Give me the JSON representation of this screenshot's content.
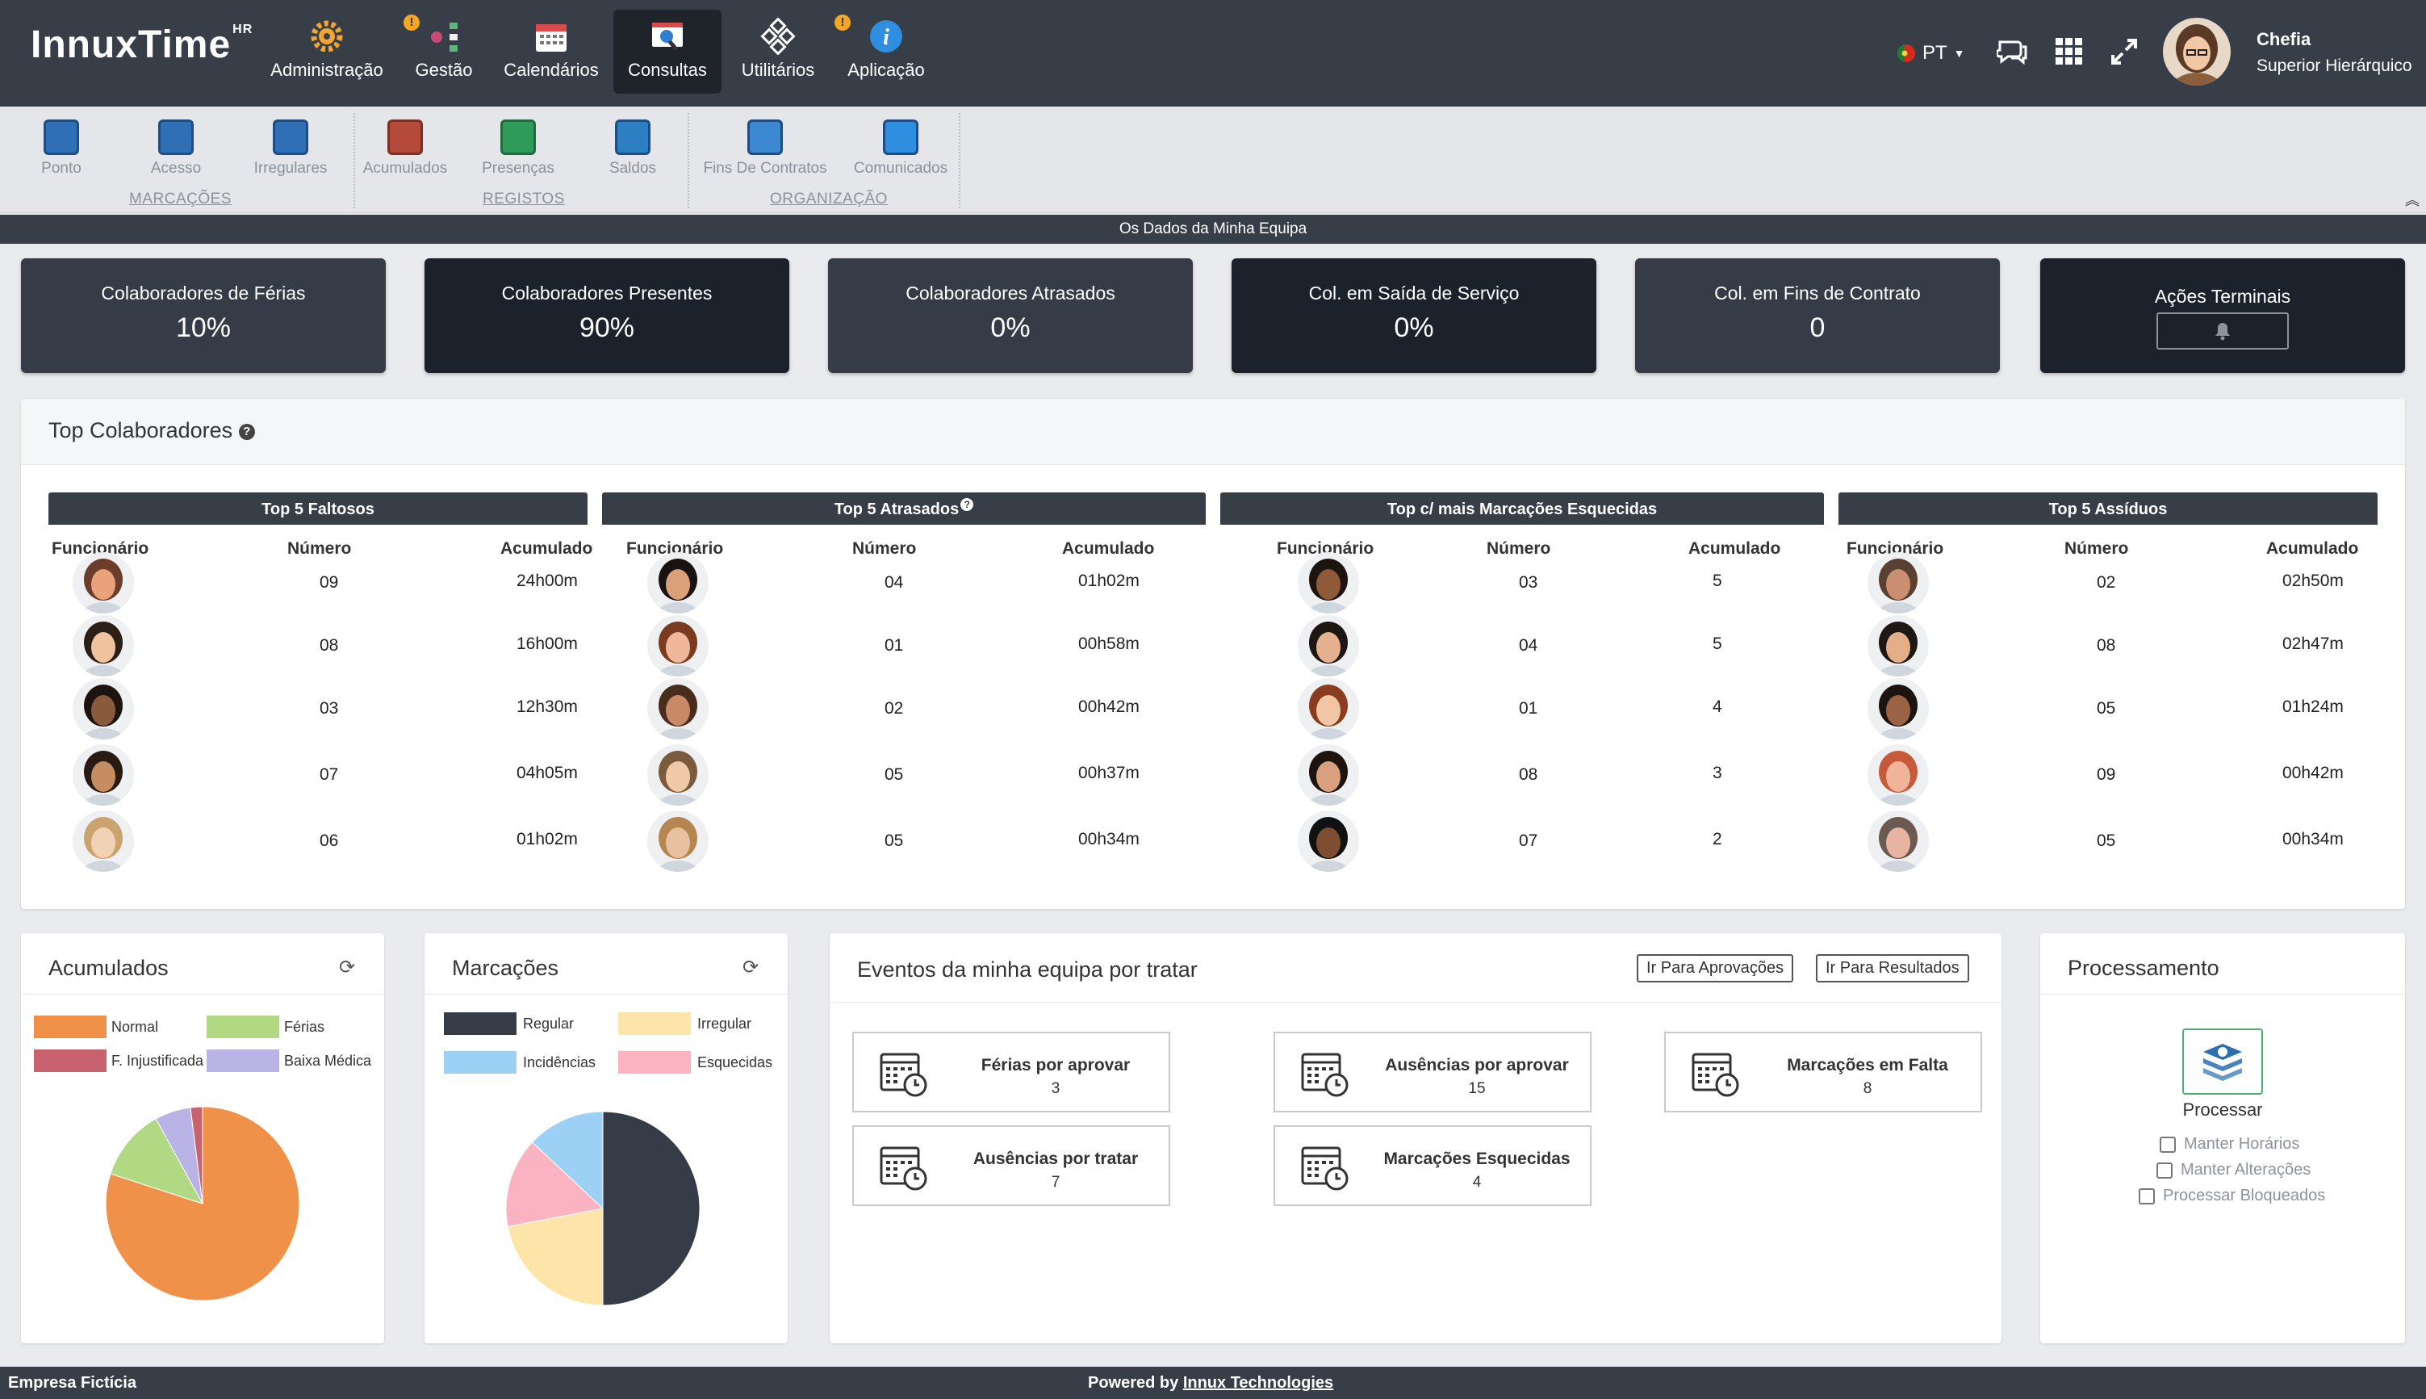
{
  "app": {
    "logo": "InnuxTime",
    "logo_sup": "HR"
  },
  "nav": {
    "items": [
      {
        "label": "Administração",
        "icon": "gear-icon"
      },
      {
        "label": "Gestão",
        "icon": "workflow-icon"
      },
      {
        "label": "Calendários",
        "icon": "calendar-icon"
      },
      {
        "label": "Consultas",
        "icon": "search-icon"
      },
      {
        "label": "Utilitários",
        "icon": "diamond-tools-icon"
      },
      {
        "label": "Aplicação",
        "icon": "info-icon"
      }
    ],
    "warn": "!",
    "lang": "PT",
    "user_name": "Chefia",
    "user_role": "Superior Hierárquico"
  },
  "subnav": {
    "items": [
      {
        "label": "Ponto"
      },
      {
        "label": "Acesso"
      },
      {
        "label": "Irregulares"
      },
      {
        "label": "Acumulados"
      },
      {
        "label": "Presenças"
      },
      {
        "label": "Saldos"
      },
      {
        "label": "Fins De Contratos"
      },
      {
        "label": "Comunicados"
      }
    ],
    "groups": [
      "MARCAÇÕES",
      "REGISTOS",
      "ORGANIZAÇÃO"
    ]
  },
  "banner": "Os Dados da Minha Equipa",
  "stats": [
    {
      "title": "Colaboradores de Férias",
      "value": "10%"
    },
    {
      "title": "Colaboradores Presentes",
      "value": "90%"
    },
    {
      "title": "Colaboradores Atrasados",
      "value": "0%"
    },
    {
      "title": "Col. em Saída de Serviço",
      "value": "0%"
    },
    {
      "title": "Col. em Fins de Contrato",
      "value": "0"
    },
    {
      "title": "Ações Terminais",
      "value": ""
    }
  ],
  "top": {
    "title": "Top Colaboradores",
    "tables": [
      {
        "title": "Top 5 Faltosos",
        "cols": [
          "Funcionário",
          "Número",
          "Acumulado"
        ],
        "rows": [
          {
            "n": "09",
            "a": "24h00m"
          },
          {
            "n": "08",
            "a": "16h00m"
          },
          {
            "n": "03",
            "a": "12h30m"
          },
          {
            "n": "07",
            "a": "04h05m"
          },
          {
            "n": "06",
            "a": "01h02m"
          }
        ]
      },
      {
        "title": "Top 5 Atrasados",
        "cols": [
          "Funcionário",
          "Número",
          "Acumulado"
        ],
        "rows": [
          {
            "n": "04",
            "a": "01h02m"
          },
          {
            "n": "01",
            "a": "00h58m"
          },
          {
            "n": "02",
            "a": "00h42m"
          },
          {
            "n": "05",
            "a": "00h37m"
          },
          {
            "n": "05",
            "a": "00h34m"
          }
        ]
      },
      {
        "title": "Top c/ mais Marcações Esquecidas",
        "cols": [
          "Funcionário",
          "Número",
          "Acumulado"
        ],
        "rows": [
          {
            "n": "03",
            "a": "5"
          },
          {
            "n": "04",
            "a": "5"
          },
          {
            "n": "01",
            "a": "4"
          },
          {
            "n": "08",
            "a": "3"
          },
          {
            "n": "07",
            "a": "2"
          }
        ]
      },
      {
        "title": "Top 5 Assíduos",
        "cols": [
          "Funcionário",
          "Número",
          "Acumulado"
        ],
        "rows": [
          {
            "n": "02",
            "a": "02h50m"
          },
          {
            "n": "08",
            "a": "02h47m"
          },
          {
            "n": "05",
            "a": "01h24m"
          },
          {
            "n": "09",
            "a": "00h42m"
          },
          {
            "n": "05",
            "a": "00h34m"
          }
        ]
      }
    ]
  },
  "acumulados": {
    "title": "Acumulados",
    "legend": [
      {
        "label": "Normal",
        "color": "#f0914a"
      },
      {
        "label": "Férias",
        "color": "#b1d882"
      },
      {
        "label": "F. Injustificada",
        "color": "#c8626f"
      },
      {
        "label": "Baixa Médica",
        "color": "#b9b3e6"
      }
    ],
    "slices": [
      {
        "label": "Normal",
        "value": 0.8
      },
      {
        "label": "Férias",
        "value": 0.12
      },
      {
        "label": "Baixa Médica",
        "value": 0.06
      },
      {
        "label": "F. Injustificada",
        "value": 0.02
      }
    ]
  },
  "marcacoes": {
    "title": "Marcações",
    "legend": [
      {
        "label": "Regular",
        "color": "#353c47"
      },
      {
        "label": "Irregular",
        "color": "#fde4a8"
      },
      {
        "label": "Incidências",
        "color": "#9dd0f5"
      },
      {
        "label": "Esquecidas",
        "color": "#fbb3c2"
      }
    ],
    "slices": [
      {
        "label": "Regular",
        "value": 0.5
      },
      {
        "label": "Irregular",
        "value": 0.22
      },
      {
        "label": "Esquecidas",
        "value": 0.15
      },
      {
        "label": "Incidências",
        "value": 0.13
      }
    ]
  },
  "eventos": {
    "title": "Eventos da minha equipa por tratar",
    "btn_aprov": "Ir Para Aprovações",
    "btn_result": "Ir Para Resultados",
    "items": [
      {
        "label": "Férias por aprovar",
        "count": "3"
      },
      {
        "label": "Ausências por tratar",
        "count": "7"
      },
      {
        "label": "Ausências por aprovar",
        "count": "15"
      },
      {
        "label": "Marcações Esquecidas",
        "count": "4"
      },
      {
        "label": "Marcações em Falta",
        "count": "8"
      }
    ]
  },
  "processamento": {
    "title": "Processamento",
    "button": "Processar",
    "options": [
      "Manter Horários",
      "Manter Alterações",
      "Processar Bloqueados"
    ]
  },
  "footer": {
    "company": "Empresa Fictícia",
    "powered": "Powered by ",
    "brand": "Innux Technologies"
  }
}
